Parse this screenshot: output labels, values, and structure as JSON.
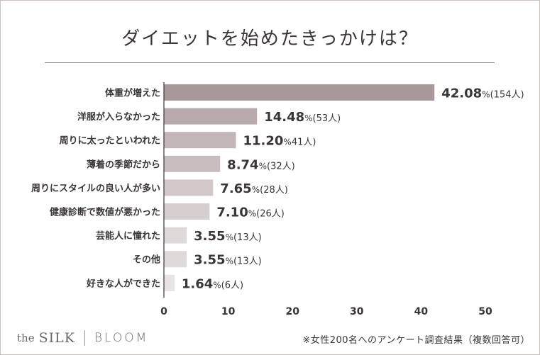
{
  "chart_data": {
    "type": "bar",
    "orientation": "horizontal",
    "title": "ダイエットを始めたきっかけは？",
    "categories": [
      "体重が増えた",
      "洋服が入らなかった",
      "周りに太ったといわれた",
      "薄着の季節だから",
      "周りにスタイルの良い人が多い",
      "健康診断で数値が悪かった",
      "芸能人に憧れた",
      "その他",
      "好きな人ができた"
    ],
    "values": [
      42.08,
      14.48,
      11.2,
      8.74,
      7.65,
      7.1,
      3.55,
      3.55,
      1.64
    ],
    "value_labels": [
      "42.08",
      "14.48",
      "11.20",
      "8.74",
      "7.65",
      "7.10",
      "3.55",
      "3.55",
      "1.64"
    ],
    "percent_sign": "%",
    "counts": [
      "(154人)",
      "(53人)",
      "41人)",
      "(32人)",
      "(28人)",
      "(26人)",
      "(13人)",
      "(13人)",
      "(6人)"
    ],
    "xlim": [
      0,
      50
    ],
    "xticks": [
      0,
      10,
      20,
      30,
      40,
      50
    ],
    "grid": false,
    "colors": [
      "#a89899",
      "#b9abad",
      "#c2b6b8",
      "#c7bcbe",
      "#d2c8ca",
      "#d7ced0",
      "#e0d9da",
      "#e0d9da",
      "#e9e3e4"
    ]
  },
  "brand": {
    "the": "the",
    "silk": "SILK",
    "bloom": "BLOOM"
  },
  "footnote": "※女性200名へのアンケート調査結果（複数回答可）",
  "colors": {
    "text": "#3b3536",
    "axis": "#3b3536",
    "frame": "#cbbfbf"
  }
}
